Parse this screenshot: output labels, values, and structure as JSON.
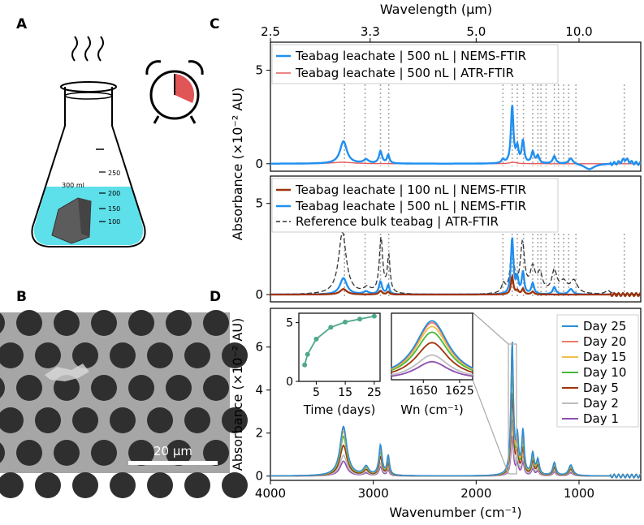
{
  "panels": {
    "a": "A",
    "b": "B",
    "c": "C",
    "d": "D"
  },
  "flask": {
    "volume_label": "300 ml",
    "marks": [
      "250",
      "200",
      "150",
      "100"
    ]
  },
  "sem": {
    "scale_label": "20 µm"
  },
  "colors": {
    "nems": "#1f8ff0",
    "atr": "#e65c5c",
    "nems100": "#a0330a",
    "ref": "#333333",
    "day25": "#2a8fd6",
    "day20": "#ef7a6a",
    "day15": "#f0c04a",
    "day10": "#45b83a",
    "day5": "#a0330a",
    "day2": "#bdbdbd",
    "day1": "#8e4fb0",
    "inset": "#4fa88a",
    "clock": "#e05555"
  },
  "top_axis": {
    "label": "Wavelength (µm)",
    "ticks": [
      "2.5",
      "3.3",
      "5.0",
      "10.0"
    ],
    "tick_values": [
      2.5,
      3.3,
      5.0,
      10.0
    ]
  },
  "bottom_axis": {
    "label": "Wavenumber (cm⁻¹)",
    "ticks": [
      "4000",
      "3000",
      "2000",
      "1000"
    ],
    "tick_values": [
      4000,
      3000,
      2000,
      1000
    ],
    "xlim": [
      4000,
      400
    ]
  },
  "ylabel_c": "Absorbance (×10⁻² AU)",
  "ylabel_d": "Absorbance (×10⁻² AU)",
  "chart_data": [
    {
      "type": "line",
      "panel": "C-top",
      "xlabel": "Wavenumber (cm⁻¹)",
      "ylabel": "Absorbance (×10⁻² AU)",
      "ylim": [
        -0.4,
        6.5
      ],
      "yticks": [
        "0",
        "5"
      ],
      "ytick_values": [
        0,
        5
      ],
      "peak_lines": [
        3280,
        3080,
        2930,
        2850,
        1740,
        1650,
        1600,
        1540,
        1450,
        1400,
        1370,
        1320,
        1240,
        1200,
        1150,
        1100,
        1030,
        560
      ],
      "series": [
        {
          "name": "Teabag leachate | 500 nL | NEMS-FTIR",
          "color_key": "nems",
          "peaks": [
            [
              3290,
              1.2,
              40
            ],
            [
              3070,
              0.2,
              30
            ],
            [
              2930,
              0.65,
              18
            ],
            [
              2855,
              0.45,
              14
            ],
            [
              1740,
              0.2,
              15
            ],
            [
              1650,
              3.1,
              14
            ],
            [
              1600,
              0.8,
              14
            ],
            [
              1545,
              1.2,
              14
            ],
            [
              1450,
              0.6,
              16
            ],
            [
              1400,
              0.4,
              16
            ],
            [
              1240,
              0.4,
              18
            ],
            [
              1080,
              0.3,
              25
            ],
            [
              900,
              -0.3,
              60
            ],
            [
              550,
              0.25,
              40
            ]
          ]
        },
        {
          "name": "Teabag leachate | 500 nL | ATR-FTIR",
          "color_key": "atr",
          "peaks": [
            [
              3300,
              0.08,
              120
            ],
            [
              1640,
              0.08,
              40
            ]
          ]
        }
      ]
    },
    {
      "type": "line",
      "panel": "C-bottom",
      "xlabel": "Wavenumber (cm⁻¹)",
      "ylabel": "Absorbance (×10⁻² AU)",
      "ylim": [
        -0.4,
        6.5
      ],
      "yticks": [
        "0",
        "5"
      ],
      "ytick_values": [
        0,
        5
      ],
      "series": [
        {
          "name": "Teabag leachate | 100 nL | NEMS-FTIR",
          "color_key": "nems100",
          "peaks": [
            [
              3290,
              0.3,
              40
            ],
            [
              2930,
              0.2,
              18
            ],
            [
              2855,
              0.15,
              14
            ],
            [
              1650,
              1.0,
              14
            ],
            [
              1600,
              0.2,
              14
            ],
            [
              1545,
              0.3,
              14
            ],
            [
              1450,
              0.15,
              16
            ]
          ]
        },
        {
          "name": "Teabag leachate | 500 nL | NEMS-FTIR",
          "color_key": "nems",
          "peaks": [
            [
              3290,
              0.9,
              40
            ],
            [
              3070,
              0.15,
              30
            ],
            [
              2930,
              0.7,
              18
            ],
            [
              2855,
              0.5,
              14
            ],
            [
              1650,
              3.1,
              14
            ],
            [
              1600,
              0.8,
              14
            ],
            [
              1545,
              1.2,
              14
            ],
            [
              1450,
              0.6,
              16
            ],
            [
              1240,
              0.4,
              18
            ],
            [
              1080,
              0.3,
              25
            ]
          ]
        },
        {
          "name": "Reference bulk teabag | ATR-FTIR",
          "color_key": "ref",
          "peaks": [
            [
              3300,
              3.4,
              45
            ],
            [
              3060,
              0.3,
              40
            ],
            [
              2925,
              3.0,
              20
            ],
            [
              2850,
              2.0,
              16
            ],
            [
              1735,
              0.5,
              20
            ],
            [
              1650,
              2.7,
              20
            ],
            [
              1550,
              2.7,
              25
            ],
            [
              1450,
              1.3,
              30
            ],
            [
              1380,
              1.0,
              30
            ],
            [
              1240,
              1.2,
              30
            ],
            [
              1150,
              0.6,
              40
            ],
            [
              1050,
              0.7,
              40
            ],
            [
              720,
              0.2,
              30
            ]
          ]
        }
      ]
    },
    {
      "type": "line",
      "panel": "D",
      "xlabel": "Wavenumber (cm⁻¹)",
      "ylabel": "Absorbance (×10⁻² AU)",
      "ylim": [
        -0.2,
        7.8
      ],
      "yticks": [
        "0",
        "2",
        "4",
        "6"
      ],
      "ytick_values": [
        0,
        2,
        4,
        6
      ],
      "series": [
        {
          "name": "Day 25",
          "color_key": "day25",
          "scale": 1.0
        },
        {
          "name": "Day 20",
          "color_key": "day20",
          "scale": 0.97
        },
        {
          "name": "Day 15",
          "color_key": "day15",
          "scale": 0.9
        },
        {
          "name": "Day 10",
          "color_key": "day10",
          "scale": 0.8
        },
        {
          "name": "Day 5",
          "color_key": "day5",
          "scale": 0.62
        },
        {
          "name": "Day 2",
          "color_key": "day2",
          "scale": 0.42
        },
        {
          "name": "Day 1",
          "color_key": "day1",
          "scale": 0.3
        }
      ],
      "base_peaks": [
        [
          3290,
          2.3,
          40
        ],
        [
          3070,
          0.4,
          30
        ],
        [
          2930,
          1.4,
          18
        ],
        [
          2855,
          0.9,
          14
        ],
        [
          1650,
          6.2,
          14
        ],
        [
          1600,
          1.6,
          14
        ],
        [
          1545,
          2.0,
          14
        ],
        [
          1450,
          1.0,
          16
        ],
        [
          1400,
          0.7,
          16
        ],
        [
          1240,
          0.6,
          18
        ],
        [
          1080,
          0.5,
          25
        ]
      ]
    },
    {
      "type": "scatter",
      "panel": "D-inset-time",
      "xlabel": "Time (days)",
      "ylabel": "",
      "x": [
        1,
        2,
        5,
        10,
        15,
        20,
        25
      ],
      "y": [
        1.4,
        2.3,
        3.6,
        4.6,
        5.05,
        5.3,
        5.55
      ],
      "xlim": [
        -1,
        27
      ],
      "ylim": [
        0,
        5.8
      ],
      "xticks": [
        "5",
        "15",
        "25"
      ],
      "xtick_values": [
        5,
        15,
        25
      ],
      "yticks": [
        "0",
        "5"
      ],
      "ytick_values": [
        0,
        5
      ]
    },
    {
      "type": "line",
      "panel": "D-inset-zoom",
      "xlabel": "Wn (cm⁻¹)",
      "ylabel": "",
      "xlim": [
        1672,
        1616
      ],
      "xticks": [
        "1650",
        "1625"
      ],
      "xtick_values": [
        1650,
        1625
      ],
      "center": 1644,
      "peak_heights": [
        6.2,
        6.0,
        5.6,
        5.0,
        3.9,
        2.6,
        1.9
      ]
    }
  ]
}
